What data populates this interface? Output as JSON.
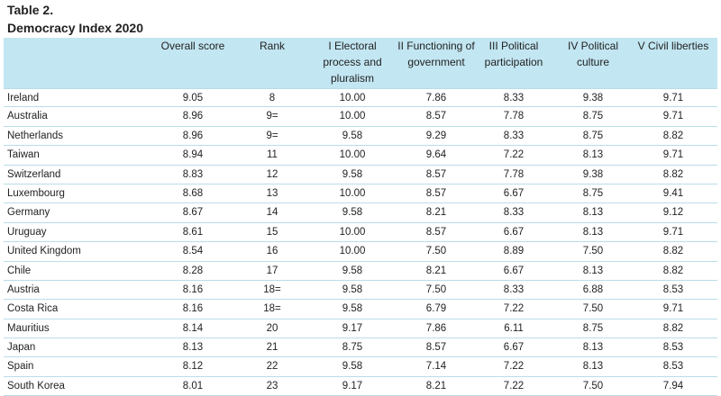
{
  "table": {
    "label": "Table 2.",
    "title": "Democracy Index 2020",
    "columns": {
      "overall": "Overall score",
      "rank": "Rank",
      "electoral": [
        "I Electoral",
        "process and",
        "pluralism"
      ],
      "functioning": [
        "II Functioning of",
        "government"
      ],
      "participation": [
        "III Political",
        "participation"
      ],
      "culture": [
        "IV Political",
        "culture"
      ],
      "liberties": [
        "V Civil liberties"
      ]
    },
    "rows": [
      [
        "Ireland",
        "9.05",
        "8",
        "10.00",
        "7.86",
        "8.33",
        "9.38",
        "9.71"
      ],
      [
        "Australia",
        "8.96",
        "9=",
        "10.00",
        "8.57",
        "7.78",
        "8.75",
        "9.71"
      ],
      [
        "Netherlands",
        "8.96",
        "9=",
        "9.58",
        "9.29",
        "8.33",
        "8.75",
        "8.82"
      ],
      [
        "Taiwan",
        "8.94",
        "11",
        "10.00",
        "9.64",
        "7.22",
        "8.13",
        "9.71"
      ],
      [
        "Switzerland",
        "8.83",
        "12",
        "9.58",
        "8.57",
        "7.78",
        "9.38",
        "8.82"
      ],
      [
        "Luxembourg",
        "8.68",
        "13",
        "10.00",
        "8.57",
        "6.67",
        "8.75",
        "9.41"
      ],
      [
        "Germany",
        "8.67",
        "14",
        "9.58",
        "8.21",
        "8.33",
        "8.13",
        "9.12"
      ],
      [
        "Uruguay",
        "8.61",
        "15",
        "10.00",
        "8.57",
        "6.67",
        "8.13",
        "9.71"
      ],
      [
        "United Kingdom",
        "8.54",
        "16",
        "10.00",
        "7.50",
        "8.89",
        "7.50",
        "8.82"
      ],
      [
        "Chile",
        "8.28",
        "17",
        "9.58",
        "8.21",
        "6.67",
        "8.13",
        "8.82"
      ],
      [
        "Austria",
        "8.16",
        "18=",
        "9.58",
        "7.50",
        "8.33",
        "6.88",
        "8.53"
      ],
      [
        "Costa Rica",
        "8.16",
        "18=",
        "9.58",
        "6.79",
        "7.22",
        "7.50",
        "9.71"
      ],
      [
        "Mauritius",
        "8.14",
        "20",
        "9.17",
        "7.86",
        "6.11",
        "8.75",
        "8.82"
      ],
      [
        "Japan",
        "8.13",
        "21",
        "8.75",
        "8.57",
        "6.67",
        "8.13",
        "8.53"
      ],
      [
        "Spain",
        "8.12",
        "22",
        "9.58",
        "7.14",
        "7.22",
        "8.13",
        "8.53"
      ],
      [
        "South Korea",
        "8.01",
        "23",
        "9.17",
        "8.21",
        "7.22",
        "7.50",
        "7.94"
      ]
    ]
  },
  "colors": {
    "header_bg": "#c2e6f2",
    "row_divider": "#b9dde9"
  }
}
